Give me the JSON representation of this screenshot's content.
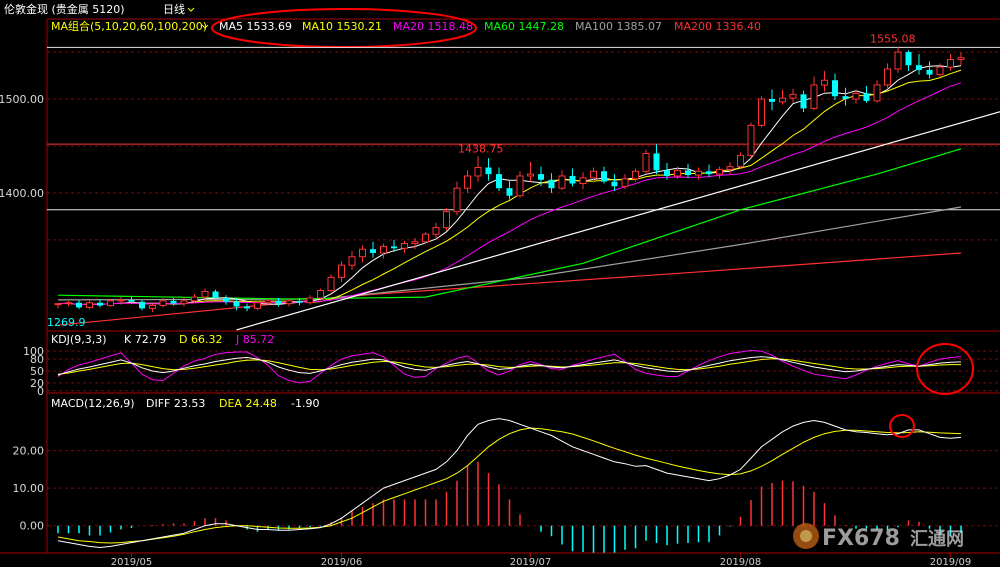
{
  "header": {
    "instrument": "伦敦金现 (贵金属 5120)",
    "period": "日线",
    "dropdown_icon": "chevron-down-icon"
  },
  "ma_legend": {
    "label": "MA组合(5,10,20,60,100,200)",
    "items": [
      {
        "text": "MA5 1533.69",
        "color": "#ffffff"
      },
      {
        "text": "MA10 1530.21",
        "color": "#ffff00"
      },
      {
        "text": "MA20 1518.48",
        "color": "#ff00ff"
      },
      {
        "text": "MA60 1447.28",
        "color": "#00ff00"
      },
      {
        "text": "MA100 1385.07",
        "color": "#a0a0a0"
      },
      {
        "text": "MA200 1336.40",
        "color": "#ff3030"
      }
    ]
  },
  "kdj_legend": {
    "label": "KDJ(9,3,3)",
    "items": [
      {
        "text": "K 72.79",
        "color": "#ffffff"
      },
      {
        "text": "D 66.32",
        "color": "#ffff00"
      },
      {
        "text": "J 85.72",
        "color": "#ff00ff"
      }
    ]
  },
  "macd_legend": {
    "label": "MACD(12,26,9)",
    "items": [
      {
        "text": "DIFF 23.53",
        "color": "#ffffff"
      },
      {
        "text": "DEA 24.48",
        "color": "#ffff00"
      },
      {
        "text": "-1.90",
        "color": "#ffffff"
      }
    ]
  },
  "price_annotations": {
    "high_label": "1555.08",
    "mid_label": "1438.75",
    "low_label": "1269.9"
  },
  "watermark": {
    "brand": "FX678",
    "suffix": "汇通网"
  },
  "colors": {
    "up": "#ff3232",
    "down": "#00ffff",
    "grid": "#8b0000",
    "border": "#aa0000",
    "annotation": "#ff0000"
  },
  "chart_data": {
    "type": "candlestick",
    "x_ticks": [
      "2019/05",
      "2019/06",
      "2019/07",
      "2019/08",
      "2019/09"
    ],
    "price_axis": {
      "ticks": [
        1400.0,
        1500.0
      ],
      "tick_labels": [
        "1400.00",
        "1500.00"
      ],
      "range": [
        1255,
        1565
      ]
    },
    "horizontal_levels": [
      1555,
      1452,
      1382
    ],
    "candles": [
      [
        1281,
        1283,
        1277,
        1282
      ],
      [
        1282,
        1285,
        1279,
        1283
      ],
      [
        1283,
        1286,
        1276,
        1278
      ],
      [
        1278,
        1285,
        1276,
        1283
      ],
      [
        1283,
        1287,
        1278,
        1280
      ],
      [
        1280,
        1287,
        1279,
        1285
      ],
      [
        1285,
        1289,
        1281,
        1286
      ],
      [
        1286,
        1290,
        1282,
        1284
      ],
      [
        1284,
        1286,
        1275,
        1277
      ],
      [
        1277,
        1282,
        1273,
        1280
      ],
      [
        1280,
        1288,
        1278,
        1285
      ],
      [
        1285,
        1288,
        1280,
        1282
      ],
      [
        1282,
        1288,
        1279,
        1285
      ],
      [
        1285,
        1292,
        1283,
        1289
      ],
      [
        1289,
        1298,
        1286,
        1295
      ],
      [
        1295,
        1297,
        1285,
        1288
      ],
      [
        1288,
        1291,
        1281,
        1284
      ],
      [
        1284,
        1287,
        1275,
        1279
      ],
      [
        1279,
        1282,
        1274,
        1277
      ],
      [
        1277,
        1285,
        1275,
        1283
      ],
      [
        1283,
        1287,
        1280,
        1285
      ],
      [
        1285,
        1288,
        1279,
        1282
      ],
      [
        1282,
        1287,
        1279,
        1285
      ],
      [
        1285,
        1288,
        1280,
        1283
      ],
      [
        1283,
        1291,
        1281,
        1288
      ],
      [
        1288,
        1298,
        1287,
        1296
      ],
      [
        1296,
        1313,
        1294,
        1310
      ],
      [
        1310,
        1327,
        1305,
        1323
      ],
      [
        1323,
        1338,
        1318,
        1332
      ],
      [
        1332,
        1344,
        1326,
        1340
      ],
      [
        1340,
        1348,
        1331,
        1336
      ],
      [
        1336,
        1346,
        1330,
        1343
      ],
      [
        1343,
        1350,
        1337,
        1341
      ],
      [
        1341,
        1349,
        1336,
        1346
      ],
      [
        1346,
        1352,
        1340,
        1348
      ],
      [
        1348,
        1358,
        1345,
        1356
      ],
      [
        1356,
        1368,
        1352,
        1363
      ],
      [
        1363,
        1384,
        1360,
        1380
      ],
      [
        1380,
        1412,
        1376,
        1405
      ],
      [
        1405,
        1424,
        1400,
        1418
      ],
      [
        1418,
        1439,
        1412,
        1427
      ],
      [
        1427,
        1437,
        1413,
        1420
      ],
      [
        1420,
        1427,
        1402,
        1405
      ],
      [
        1405,
        1414,
        1393,
        1397
      ],
      [
        1397,
        1423,
        1395,
        1418
      ],
      [
        1418,
        1433,
        1412,
        1420
      ],
      [
        1420,
        1428,
        1407,
        1414
      ],
      [
        1414,
        1421,
        1400,
        1405
      ],
      [
        1405,
        1424,
        1403,
        1418
      ],
      [
        1418,
        1426,
        1407,
        1410
      ],
      [
        1410,
        1422,
        1404,
        1416
      ],
      [
        1416,
        1427,
        1411,
        1423
      ],
      [
        1423,
        1428,
        1410,
        1412
      ],
      [
        1412,
        1420,
        1402,
        1407
      ],
      [
        1407,
        1420,
        1404,
        1415
      ],
      [
        1415,
        1426,
        1412,
        1423
      ],
      [
        1423,
        1446,
        1420,
        1442
      ],
      [
        1442,
        1452,
        1420,
        1424
      ],
      [
        1424,
        1432,
        1414,
        1418
      ],
      [
        1418,
        1428,
        1415,
        1424
      ],
      [
        1424,
        1431,
        1416,
        1419
      ],
      [
        1419,
        1427,
        1414,
        1423
      ],
      [
        1423,
        1430,
        1417,
        1420
      ],
      [
        1420,
        1428,
        1415,
        1425
      ],
      [
        1425,
        1433,
        1420,
        1428
      ],
      [
        1428,
        1443,
        1426,
        1440
      ],
      [
        1440,
        1475,
        1437,
        1472
      ],
      [
        1472,
        1503,
        1470,
        1500
      ],
      [
        1500,
        1510,
        1488,
        1497
      ],
      [
        1497,
        1510,
        1494,
        1501
      ],
      [
        1501,
        1511,
        1496,
        1505
      ],
      [
        1505,
        1509,
        1486,
        1490
      ],
      [
        1490,
        1524,
        1488,
        1515
      ],
      [
        1515,
        1530,
        1508,
        1520
      ],
      [
        1520,
        1527,
        1499,
        1503
      ],
      [
        1503,
        1512,
        1493,
        1500
      ],
      [
        1500,
        1510,
        1495,
        1506
      ],
      [
        1506,
        1514,
        1496,
        1498
      ],
      [
        1498,
        1520,
        1496,
        1515
      ],
      [
        1515,
        1538,
        1512,
        1532
      ],
      [
        1532,
        1555,
        1528,
        1550
      ],
      [
        1550,
        1552,
        1530,
        1536
      ],
      [
        1536,
        1548,
        1526,
        1531
      ],
      [
        1531,
        1540,
        1522,
        1526
      ],
      [
        1526,
        1538,
        1524,
        1534
      ],
      [
        1534,
        1548,
        1530,
        1542
      ],
      [
        1542,
        1550,
        1536,
        1544
      ]
    ],
    "series": [
      {
        "name": "MA200",
        "color": "#ff3030",
        "points": [
          [
            0,
            1259
          ],
          [
            30,
            1292
          ],
          [
            60,
            1315
          ],
          [
            86,
            1336
          ]
        ]
      },
      {
        "name": "MA100",
        "color": "#a0a0a0",
        "points": [
          [
            0,
            1286
          ],
          [
            25,
            1287
          ],
          [
            45,
            1310
          ],
          [
            65,
            1345
          ],
          [
            86,
            1385
          ]
        ]
      },
      {
        "name": "MA60",
        "color": "#00ff00",
        "points": [
          [
            0,
            1291
          ],
          [
            22,
            1287
          ],
          [
            35,
            1289
          ],
          [
            50,
            1325
          ],
          [
            65,
            1382
          ],
          [
            78,
            1420
          ],
          [
            86,
            1447
          ]
        ]
      }
    ],
    "trendline": {
      "color": "#ffffff",
      "from": [
        17,
        1254
      ],
      "to": [
        93,
        1497
      ]
    },
    "kdj": {
      "axis_ticks": [
        0,
        20,
        50,
        80,
        100
      ],
      "range": [
        -3,
        108
      ],
      "K": [
        40,
        48,
        55,
        60,
        66,
        72,
        78,
        70,
        58,
        50,
        46,
        50,
        57,
        63,
        68,
        74,
        78,
        82,
        84,
        80,
        72,
        60,
        52,
        46,
        44,
        50,
        58,
        66,
        72,
        76,
        80,
        78,
        70,
        60,
        54,
        52,
        58,
        64,
        70,
        74,
        68,
        60,
        54,
        56,
        62,
        66,
        64,
        60,
        58,
        62,
        66,
        70,
        74,
        78,
        72,
        64,
        58,
        54,
        50,
        48,
        52,
        58,
        64,
        70,
        76,
        80,
        84,
        86,
        84,
        78,
        72,
        66,
        60,
        56,
        52,
        48,
        50,
        54,
        58,
        62,
        66,
        64,
        62,
        66,
        70,
        72,
        73
      ],
      "D": [
        42,
        45,
        50,
        54,
        59,
        64,
        69,
        70,
        66,
        61,
        56,
        53,
        54,
        57,
        61,
        65,
        69,
        74,
        77,
        78,
        76,
        71,
        65,
        59,
        54,
        53,
        55,
        59,
        64,
        68,
        72,
        74,
        73,
        69,
        64,
        60,
        59,
        61,
        64,
        67,
        67,
        65,
        61,
        59,
        60,
        62,
        63,
        62,
        60,
        61,
        63,
        65,
        68,
        71,
        71,
        69,
        65,
        61,
        57,
        54,
        53,
        55,
        58,
        62,
        67,
        71,
        75,
        79,
        81,
        80,
        77,
        73,
        69,
        65,
        61,
        57,
        55,
        55,
        56,
        58,
        61,
        62,
        62,
        63,
        65,
        66,
        66
      ],
      "J": [
        36,
        54,
        65,
        72,
        80,
        88,
        96,
        70,
        42,
        28,
        26,
        44,
        63,
        75,
        82,
        92,
        96,
        98,
        98,
        84,
        64,
        38,
        26,
        20,
        24,
        44,
        64,
        80,
        88,
        92,
        96,
        86,
        64,
        42,
        34,
        36,
        56,
        70,
        82,
        88,
        70,
        50,
        40,
        50,
        66,
        74,
        66,
        56,
        54,
        64,
        72,
        80,
        86,
        92,
        74,
        54,
        44,
        40,
        36,
        36,
        50,
        64,
        76,
        86,
        94,
        98,
        102,
        100,
        90,
        74,
        62,
        52,
        42,
        38,
        34,
        30,
        40,
        52,
        62,
        70,
        76,
        68,
        62,
        72,
        80,
        84,
        86
      ]
    },
    "macd": {
      "axis_ticks": [
        0.0,
        10.0,
        20.0
      ],
      "tick_labels": [
        "0.00",
        "10.00",
        "20.00"
      ],
      "range": [
        -7,
        30
      ],
      "DIFF": [
        -4,
        -4.5,
        -5,
        -5.5,
        -5.8,
        -5.5,
        -5,
        -4.5,
        -4,
        -3.5,
        -3,
        -2.5,
        -2,
        -1,
        0,
        0.5,
        0.5,
        0,
        -0.5,
        -1,
        -1,
        -1.2,
        -1.2,
        -1,
        -0.8,
        -0.5,
        0.5,
        2,
        4,
        6,
        8,
        10,
        11,
        12,
        13,
        14,
        15,
        17,
        20,
        24,
        27,
        28,
        28.5,
        28,
        27,
        26,
        25,
        24,
        22.5,
        21,
        20,
        19,
        18,
        17,
        16.5,
        15.8,
        16,
        15,
        14,
        13.5,
        13,
        12.5,
        12,
        12.5,
        13.5,
        15,
        18,
        21,
        23,
        25,
        26.5,
        27.5,
        28,
        27.5,
        26.5,
        25.5,
        25,
        24.8,
        24.5,
        24.2,
        24.5,
        25.5,
        25.5,
        24.5,
        23.5,
        23.3,
        23.5
      ],
      "DEA": [
        -3,
        -3.5,
        -4,
        -4.2,
        -4.5,
        -4.6,
        -4.5,
        -4.2,
        -4,
        -3.6,
        -3.2,
        -2.8,
        -2.3,
        -1.6,
        -1,
        -0.5,
        -0.2,
        0,
        0,
        -0.2,
        -0.4,
        -0.6,
        -0.7,
        -0.7,
        -0.6,
        -0.4,
        0,
        1,
        2,
        3.5,
        5,
        6.5,
        7.5,
        8.5,
        9.5,
        10.5,
        11.5,
        12.5,
        14,
        16,
        18.5,
        21,
        23,
        24.5,
        25.5,
        26,
        25.8,
        25.4,
        25,
        24.4,
        23.5,
        22.6,
        21.6,
        20.6,
        19.7,
        18.8,
        18,
        17.3,
        16.6,
        15.9,
        15.3,
        14.7,
        14.2,
        13.8,
        13.6,
        13.8,
        14.6,
        15.8,
        17.3,
        19,
        20.6,
        22.2,
        23.5,
        24.5,
        25.1,
        25.4,
        25.4,
        25.2,
        25,
        24.8,
        24.7,
        24.8,
        25,
        24.9,
        24.7,
        24.6,
        24.48
      ]
    }
  }
}
